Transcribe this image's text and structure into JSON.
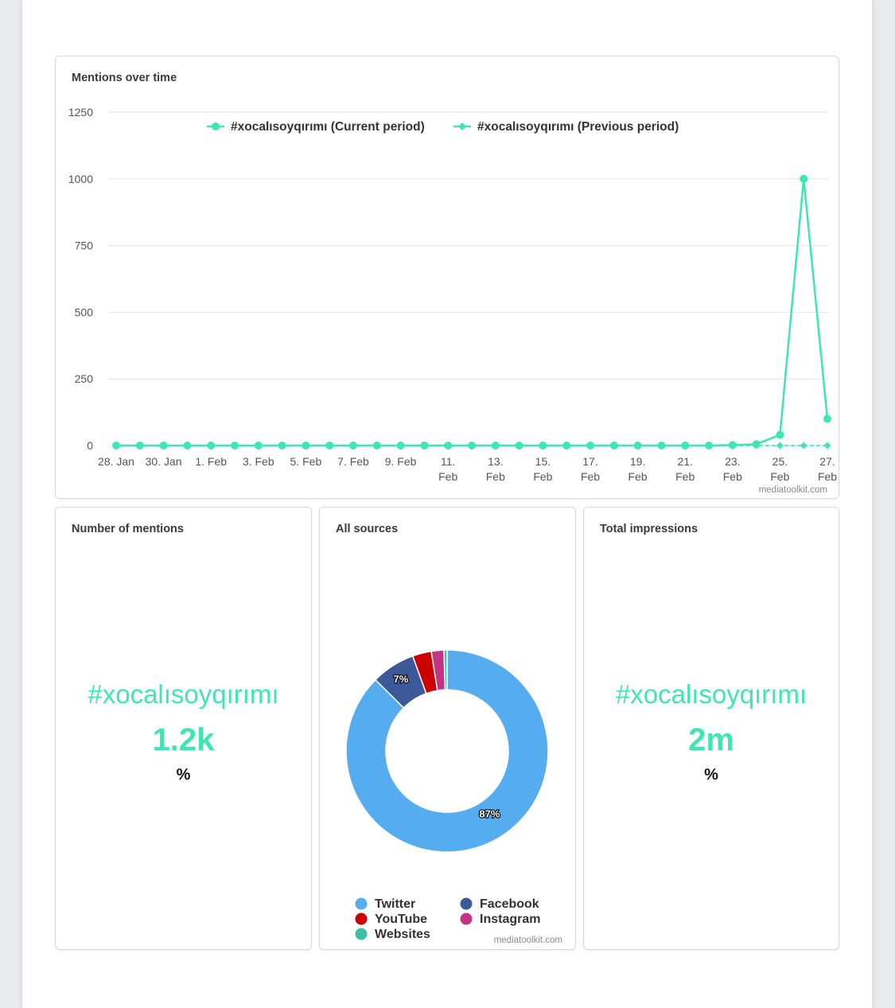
{
  "line_card": {
    "title": "Mentions over time",
    "credit": "mediatoolkit.com"
  },
  "mentions_card": {
    "title": "Number of mentions",
    "tag": "#xocalısoyqırımı",
    "value": "1.2k",
    "unit": "%"
  },
  "sources_card": {
    "title": "All sources",
    "credit": "mediatoolkit.com"
  },
  "impressions_card": {
    "title": "Total impressions",
    "tag": "#xocalısoyqırımı",
    "value": "2m",
    "unit": "%"
  },
  "chart_data": [
    {
      "type": "line",
      "title": "Mentions over time",
      "ylim": [
        0,
        1250
      ],
      "yticks": [
        0,
        250,
        500,
        750,
        1000,
        1250
      ],
      "grid": true,
      "legend_position": "top",
      "x_tick_labels": [
        [
          "28. Jan"
        ],
        [
          "30. Jan"
        ],
        [
          "1. Feb"
        ],
        [
          "3. Feb"
        ],
        [
          "5. Feb"
        ],
        [
          "7. Feb"
        ],
        [
          "9. Feb"
        ],
        [
          "11.",
          "Feb"
        ],
        [
          "13.",
          "Feb"
        ],
        [
          "15.",
          "Feb"
        ],
        [
          "17.",
          "Feb"
        ],
        [
          "19.",
          "Feb"
        ],
        [
          "21.",
          "Feb"
        ],
        [
          "23.",
          "Feb"
        ],
        [
          "25.",
          "Feb"
        ],
        [
          "27.",
          "Feb"
        ]
      ],
      "x": [
        "28 Jan",
        "29 Jan",
        "30 Jan",
        "31 Jan",
        "1 Feb",
        "2 Feb",
        "3 Feb",
        "4 Feb",
        "5 Feb",
        "6 Feb",
        "7 Feb",
        "8 Feb",
        "9 Feb",
        "10 Feb",
        "11 Feb",
        "12 Feb",
        "13 Feb",
        "14 Feb",
        "15 Feb",
        "16 Feb",
        "17 Feb",
        "18 Feb",
        "19 Feb",
        "20 Feb",
        "21 Feb",
        "22 Feb",
        "23 Feb",
        "24 Feb",
        "25 Feb",
        "26 Feb",
        "27 Feb"
      ],
      "series": [
        {
          "name": "#xocalısoyqırımı (Current period)",
          "color": "#3ee6b4",
          "marker": "circle",
          "values": [
            0,
            0,
            0,
            0,
            0,
            0,
            0,
            0,
            0,
            0,
            0,
            0,
            0,
            0,
            0,
            0,
            0,
            0,
            0,
            0,
            0,
            0,
            0,
            0,
            0,
            0,
            2,
            5,
            40,
            1000,
            100
          ]
        },
        {
          "name": "#xocalısoyqırımı (Previous period)",
          "color": "#3ee6b4",
          "marker": "diamond",
          "values": [
            0,
            0,
            0,
            0,
            0,
            0,
            0,
            0,
            0,
            0,
            0,
            0,
            0,
            0,
            0,
            0,
            0,
            0,
            0,
            0,
            0,
            0,
            0,
            0,
            0,
            0,
            0,
            0,
            0,
            0,
            0
          ]
        }
      ]
    },
    {
      "type": "pie",
      "title": "All sources",
      "donut": true,
      "legend_position": "bottom",
      "slices": [
        {
          "label": "Twitter",
          "value": 87,
          "color": "#55acee",
          "data_label": "87%"
        },
        {
          "label": "Facebook",
          "value": 7,
          "color": "#3b5998",
          "data_label": "7%"
        },
        {
          "label": "YouTube",
          "value": 3,
          "color": "#cc0000",
          "data_label": ""
        },
        {
          "label": "Instagram",
          "value": 2,
          "color": "#c13584",
          "data_label": ""
        },
        {
          "label": "Websites",
          "value": 0.5,
          "color": "#3cbfa5",
          "data_label": ""
        }
      ],
      "legend_order": [
        "Twitter",
        "Facebook",
        "YouTube",
        "Instagram",
        "Websites"
      ]
    }
  ]
}
